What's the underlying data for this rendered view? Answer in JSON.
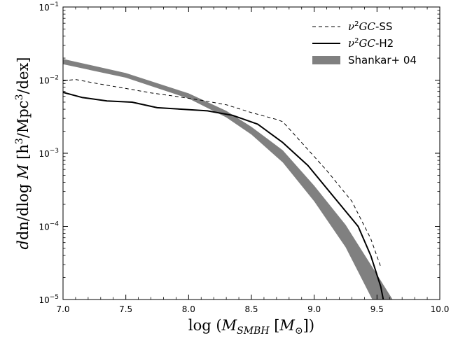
{
  "chart_data": {
    "type": "line",
    "xlabel": "log (M_SMBH [M_⊙])",
    "ylabel": "dn/dlog M [h³/Mpc³/dex]",
    "xlim": [
      7.0,
      10.0
    ],
    "ylim": [
      1e-05,
      0.1
    ],
    "yscale": "log",
    "grid": false,
    "legend_position": "top-right",
    "x_ticks": [
      7.0,
      7.5,
      8.0,
      8.5,
      9.0,
      9.5,
      10.0
    ],
    "x_tick_labels": [
      "7.0",
      "7.5",
      "8.0",
      "8.5",
      "9.0",
      "9.5",
      "10.0"
    ],
    "y_ticks": [
      1e-05,
      0.0001,
      0.001,
      0.01,
      0.1
    ],
    "y_tick_labels": [
      {
        "base": "10",
        "exp": "−5"
      },
      {
        "base": "10",
        "exp": "−4"
      },
      {
        "base": "10",
        "exp": "−3"
      },
      {
        "base": "10",
        "exp": "−2"
      },
      {
        "base": "10",
        "exp": "−1"
      }
    ],
    "series": [
      {
        "name": "ν²GC-SS",
        "style": "dashed",
        "color": "#000000",
        "x": [
          7.0,
          7.1,
          7.3,
          7.5,
          7.7,
          7.9,
          8.1,
          8.3,
          8.5,
          8.7,
          8.75,
          8.9,
          9.1,
          9.3,
          9.45,
          9.53
        ],
        "y": [
          0.0098,
          0.0102,
          0.0088,
          0.0077,
          0.0067,
          0.006,
          0.0053,
          0.0046,
          0.0036,
          0.0029,
          0.0027,
          0.0014,
          0.00058,
          0.00022,
          6.8e-05,
          2.8e-05
        ]
      },
      {
        "name": "ν²GC-H2",
        "style": "solid",
        "color": "#000000",
        "x": [
          7.0,
          7.15,
          7.35,
          7.55,
          7.75,
          7.95,
          8.15,
          8.35,
          8.55,
          8.75,
          8.95,
          9.15,
          9.35,
          9.45,
          9.53,
          9.55
        ],
        "y": [
          0.0068,
          0.0058,
          0.0052,
          0.005,
          0.0042,
          0.004,
          0.0038,
          0.0033,
          0.0025,
          0.0014,
          0.00068,
          0.00026,
          0.0001,
          4e-05,
          1.5e-05,
          1e-05
        ]
      },
      {
        "name": "Shankar+ 04",
        "style": "band",
        "color": "#808080",
        "x": [
          7.0,
          7.5,
          8.0,
          8.3,
          8.5,
          8.75,
          9.0,
          9.25,
          9.5,
          9.65
        ],
        "y_upper": [
          0.0195,
          0.0125,
          0.0066,
          0.0038,
          0.0023,
          0.0011,
          0.00036,
          0.000105,
          2.2e-05,
          8.5e-06
        ],
        "y_lower": [
          0.0165,
          0.0108,
          0.0056,
          0.0031,
          0.0018,
          0.00075,
          0.00022,
          5.2e-05,
          7.5e-06,
          2.8e-06
        ]
      }
    ]
  },
  "legend": {
    "items": [
      {
        "prefix": "ν",
        "sup": "2",
        "italic": "GC",
        "suffix": "-SS"
      },
      {
        "prefix": "ν",
        "sup": "2",
        "italic": "GC",
        "suffix": "-H2"
      },
      {
        "prefix": "Shankar+ 04",
        "sup": "",
        "italic": "",
        "suffix": ""
      }
    ]
  },
  "axes_labels": {
    "x": {
      "lead": "log (",
      "var": "M",
      "sub": "SMBH",
      "mid": " [",
      "sym": "M",
      "symsub": "⊙",
      "tail": "])"
    },
    "y": {
      "lead": "dn/dlog ",
      "var": "M",
      "mid": " [h",
      "sup1": "3",
      "mid2": "/Mpc",
      "sup2": "3",
      "tail": "/dex]"
    }
  }
}
